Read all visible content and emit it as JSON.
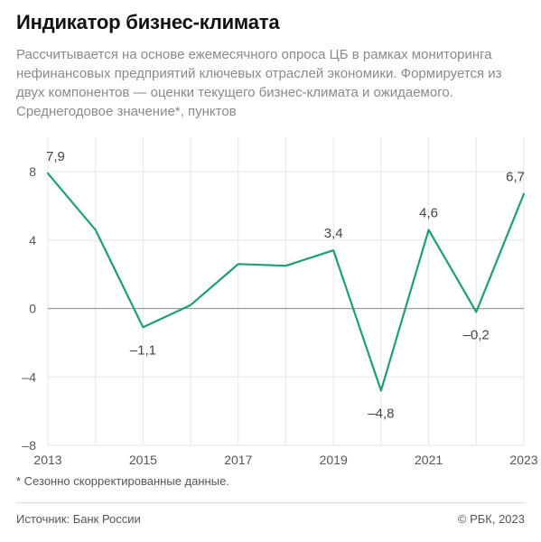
{
  "header": {
    "title": "Индикатор бизнес-климата",
    "subtitle": "Рассчитывается на основе ежемесячного опроса ЦБ в рамках мониторинга нефинансовых предприятий ключевых отраслей экономики. Формируется из двух компонентов — оценки текущего бизнес-климата и ожидаемого. Среднегодовое значение*, пунктов"
  },
  "chart_data": {
    "type": "line",
    "title": "Индикатор бизнес-климата",
    "x": [
      2013,
      2014,
      2015,
      2016,
      2017,
      2018,
      2019,
      2020,
      2021,
      2022,
      2023
    ],
    "series": [
      {
        "values": [
          7.9,
          4.6,
          -1.1,
          0.2,
          2.6,
          2.5,
          3.4,
          -4.8,
          4.6,
          -0.2,
          6.7
        ]
      }
    ],
    "data_labels": [
      {
        "x": 2013,
        "text": "7,9"
      },
      {
        "x": 2015,
        "text": "–1,1"
      },
      {
        "x": 2019,
        "text": "3,4"
      },
      {
        "x": 2020,
        "text": "–4,8"
      },
      {
        "x": 2021,
        "text": "4,6"
      },
      {
        "x": 2022,
        "text": "–0,2"
      },
      {
        "x": 2023,
        "text": "6,7"
      }
    ],
    "yticks": [
      {
        "value": 8,
        "label": "8"
      },
      {
        "value": 4,
        "label": "4"
      },
      {
        "value": 0,
        "label": "0"
      },
      {
        "value": -4,
        "label": "–4"
      },
      {
        "value": -8,
        "label": "–8"
      }
    ],
    "xticks": [
      {
        "value": 2013,
        "label": "2013"
      },
      {
        "value": 2015,
        "label": "2015"
      },
      {
        "value": 2017,
        "label": "2017"
      },
      {
        "value": 2019,
        "label": "2019"
      },
      {
        "value": 2021,
        "label": "2021"
      },
      {
        "value": 2023,
        "label": "2023"
      }
    ],
    "ylim": [
      -8,
      8
    ],
    "xlim": [
      2013,
      2023
    ],
    "grid": true,
    "colors": {
      "line": "#1f9e73",
      "grid": "#e6e6e6",
      "zero": "#9a9a9a",
      "label": "#555555"
    }
  },
  "footer": {
    "footnote": "* Сезонно скорректированные данные.",
    "source": "Источник: Банк России",
    "copyright": "© РБК, 2023"
  }
}
